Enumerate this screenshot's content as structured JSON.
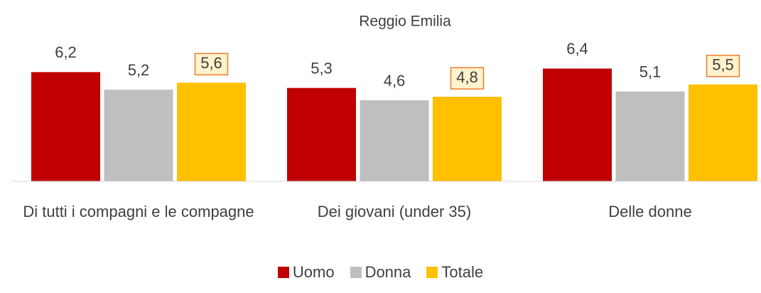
{
  "chart_data": {
    "type": "bar",
    "title": "Reggio Emilia",
    "categories": [
      "Di tutti i compagni e le compagne",
      "Dei giovani (under 35)",
      "Delle donne"
    ],
    "series": [
      {
        "name": "Uomo",
        "color": "#c00000",
        "values": [
          6.2,
          5.3,
          6.4
        ],
        "value_labels": [
          "6,2",
          "5,3",
          "6,4"
        ]
      },
      {
        "name": "Donna",
        "color": "#bfbfbf",
        "values": [
          5.2,
          4.6,
          5.1
        ],
        "value_labels": [
          "5,2",
          "4,6",
          "5,1"
        ]
      },
      {
        "name": "Totale",
        "color": "#ffc000",
        "values": [
          5.6,
          4.8,
          5.5
        ],
        "value_labels": [
          "5,6",
          "4,8",
          "5,5"
        ],
        "boxed_labels": true
      }
    ],
    "ylim": [
      0,
      9
    ],
    "grid": false,
    "legend": "bottom"
  }
}
